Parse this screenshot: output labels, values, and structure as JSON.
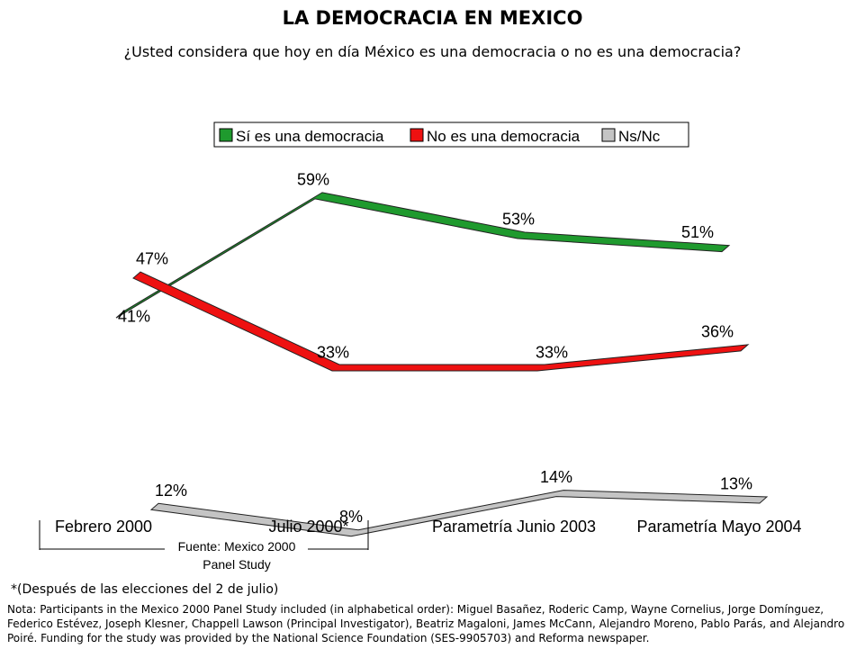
{
  "title": "LA DEMOCRACIA EN MEXICO",
  "subtitle": "¿Usted considera que hoy en día México es una democracia o no es una democracia?",
  "colors": {
    "si": "#1f9a2e",
    "no": "#ee1111",
    "nsnc": "#c4c4c4"
  },
  "chart_data": {
    "type": "line",
    "categories": [
      "Febrero 2000",
      "Julio 2000*",
      "Parametría Junio 2003",
      "Parametría Mayo 2004"
    ],
    "series": [
      {
        "name": "Sí es una democracia",
        "values": [
          41,
          59,
          53,
          51
        ],
        "labels": [
          "41%",
          "59%",
          "53%",
          "51%"
        ]
      },
      {
        "name": "No es una democracia",
        "values": [
          47,
          33,
          33,
          36
        ],
        "labels": [
          "47%",
          "33%",
          "33%",
          "36%"
        ]
      },
      {
        "name": "Ns/Nc",
        "values": [
          12,
          8,
          14,
          13
        ],
        "labels": [
          "12%",
          "8%",
          "14%",
          "13%"
        ]
      }
    ],
    "legend": "top",
    "grid": false
  },
  "source_label_line1": "Fuente: Mexico 2000",
  "source_label_line2": "Panel Study",
  "footnote": "*(Después de las elecciones del 2 de julio)",
  "credits": "Nota: Participants in the Mexico 2000 Panel Study included (in alphabetical order):  Miguel Basañez, Roderic Camp, Wayne Cornelius, Jorge Domínguez, Federico Estévez, Joseph Klesner, Chappell Lawson (Principal Investigator), Beatriz Magaloni, James McCann, Alejandro Moreno, Pablo Parás, and Alejandro Poiré.  Funding for the study was provided by the National Science Foundation (SES-9905703) and Reforma newspaper."
}
